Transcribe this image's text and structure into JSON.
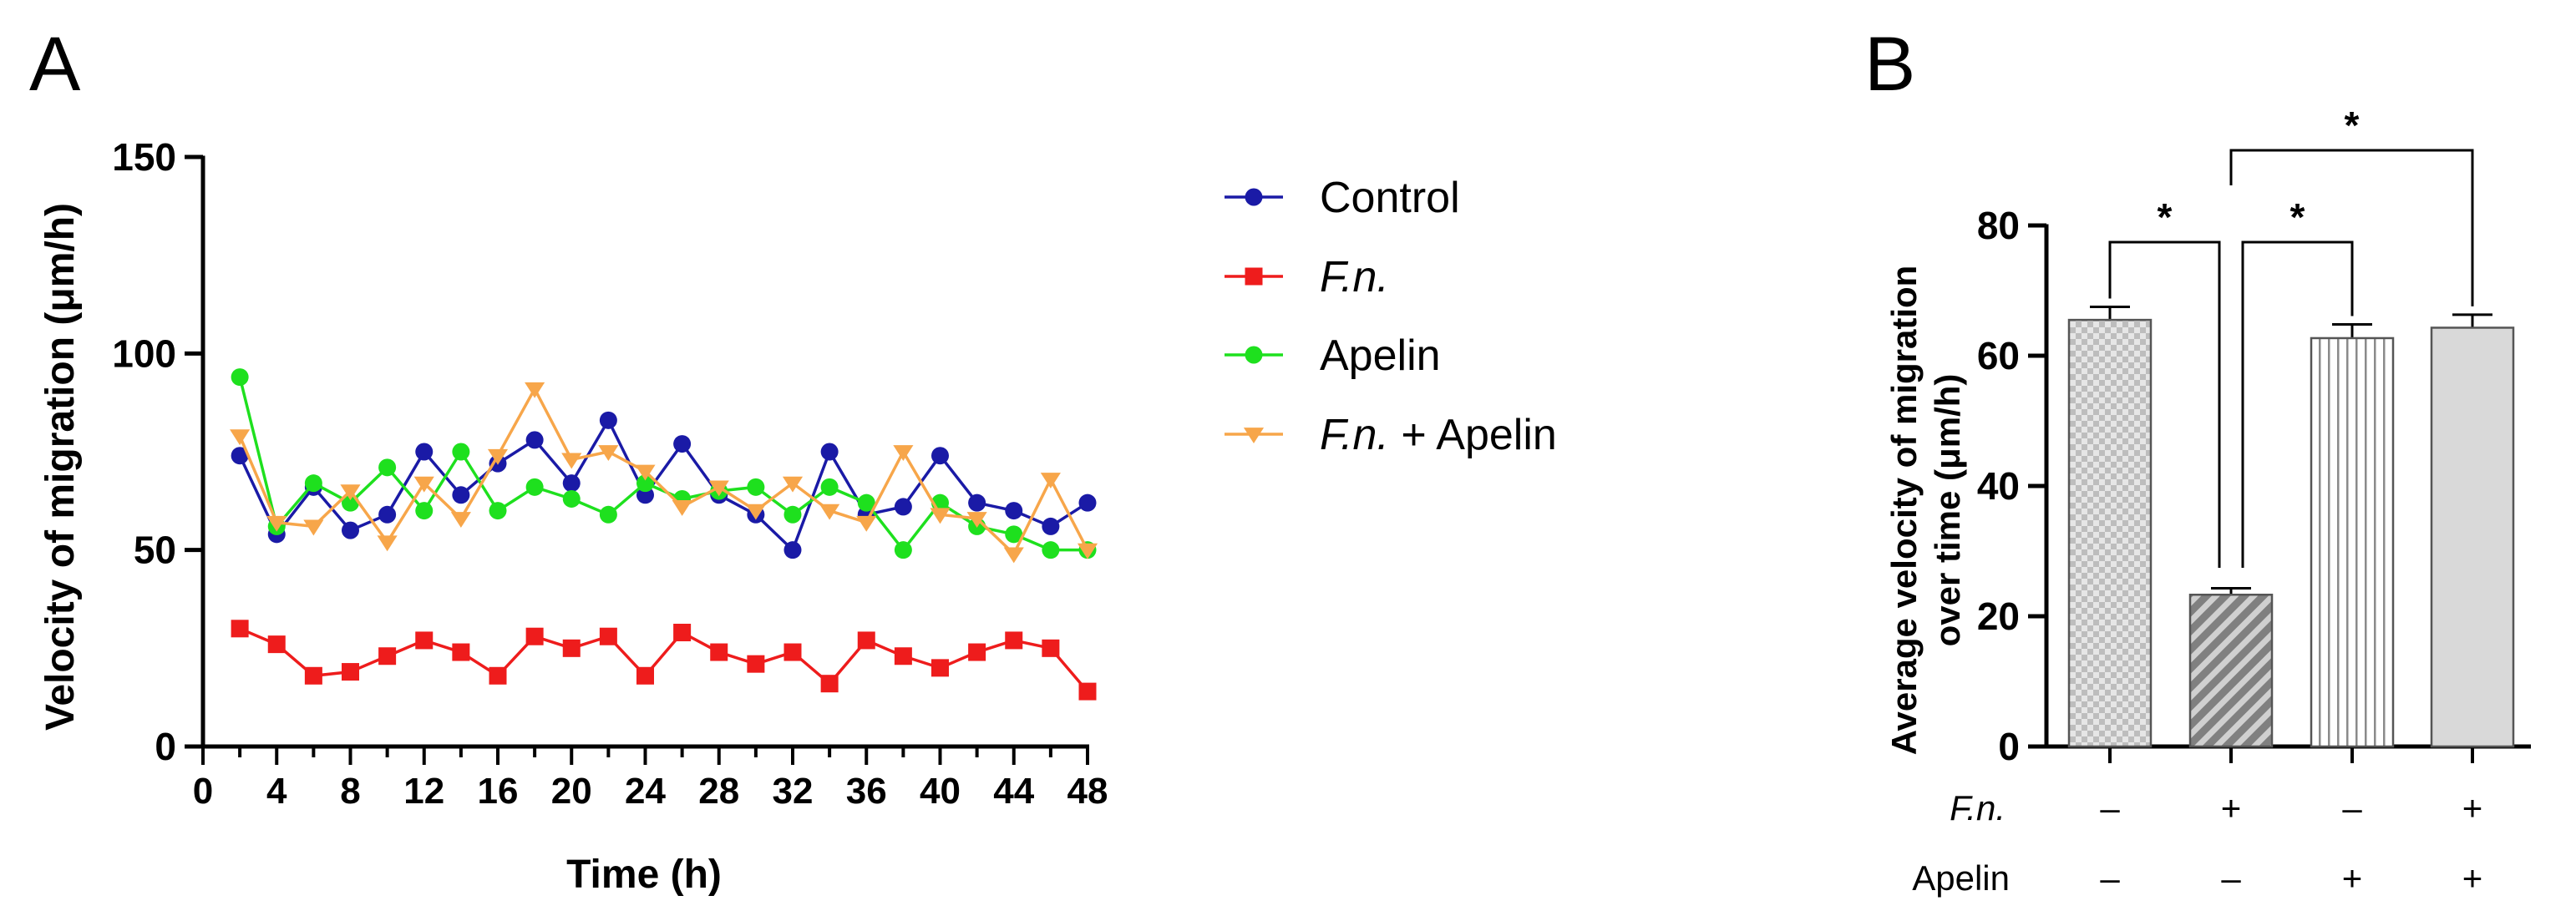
{
  "panels": {
    "a_label": "A",
    "b_label": "B"
  },
  "chart_data": [
    {
      "type": "line",
      "xlabel": "Time (h)",
      "ylabel": "Velocity of migration (μm/h)",
      "xlim": [
        0,
        48
      ],
      "ylim": [
        0,
        150
      ],
      "xticks": [
        "0",
        "4",
        "8",
        "12",
        "16",
        "20",
        "24",
        "28",
        "32",
        "36",
        "40",
        "44",
        "48"
      ],
      "yticks": [
        "0",
        "50",
        "100",
        "150"
      ],
      "x": [
        2,
        4,
        6,
        8,
        10,
        12,
        14,
        16,
        18,
        20,
        22,
        24,
        26,
        28,
        30,
        32,
        34,
        36,
        38,
        40,
        42,
        44,
        46,
        48
      ],
      "legend_position": "right",
      "series": [
        {
          "name": "Control",
          "name_italic": "",
          "name_rest": "Control",
          "color": "#1a1aa6",
          "marker": "circle",
          "values": [
            74,
            54,
            66,
            55,
            59,
            75,
            64,
            72,
            78,
            67,
            83,
            64,
            77,
            64,
            59,
            50,
            75,
            59,
            61,
            74,
            62,
            60,
            56,
            62
          ]
        },
        {
          "name": "F.n.",
          "name_italic": "F.n.",
          "name_rest": "",
          "color": "#ee1c1c",
          "marker": "square",
          "values": [
            30,
            26,
            18,
            19,
            23,
            27,
            24,
            18,
            28,
            25,
            28,
            18,
            29,
            24,
            21,
            24,
            16,
            27,
            23,
            20,
            24,
            27,
            25,
            14
          ]
        },
        {
          "name": "Apelin",
          "name_italic": "",
          "name_rest": "Apelin",
          "color": "#1ee01e",
          "marker": "circle",
          "values": [
            94,
            56,
            67,
            62,
            71,
            60,
            75,
            60,
            66,
            63,
            59,
            67,
            63,
            65,
            66,
            59,
            66,
            62,
            50,
            62,
            56,
            54,
            50,
            50
          ]
        },
        {
          "name": "F.n. + Apelin",
          "name_italic": "F.n.",
          "name_rest": " + Apelin",
          "color": "#f7a64a",
          "marker": "triangle-down",
          "values": [
            79,
            57,
            56,
            65,
            52,
            67,
            58,
            74,
            91,
            73,
            75,
            70,
            61,
            66,
            60,
            67,
            60,
            57,
            75,
            59,
            58,
            49,
            68,
            50
          ]
        }
      ]
    },
    {
      "type": "bar",
      "ylabel_line1": "Average velocity of migration",
      "ylabel_line2": "over time  (μm/h)",
      "ylim": [
        0,
        80
      ],
      "yticks": [
        "0",
        "20",
        "40",
        "60",
        "80"
      ],
      "categories": [
        "Control",
        "F.n.",
        "Apelin",
        "F.n. + Apelin"
      ],
      "values": [
        65.5,
        23.3,
        62.7,
        64.3
      ],
      "errors": [
        2.0,
        1.0,
        2.1,
        2.0
      ],
      "patterns": [
        "checker",
        "diagonal",
        "vertical",
        "solid"
      ],
      "row_labels": [
        "F.n.",
        "Apelin"
      ],
      "factor_table": [
        [
          "–",
          "+",
          "–",
          "+"
        ],
        [
          "–",
          "–",
          "+",
          "+"
        ]
      ],
      "significance": [
        {
          "from": 0,
          "to": 1,
          "label": "*"
        },
        {
          "from": 1,
          "to": 2,
          "label": "*"
        },
        {
          "from": 1,
          "to": 3,
          "label": "*"
        }
      ]
    }
  ]
}
